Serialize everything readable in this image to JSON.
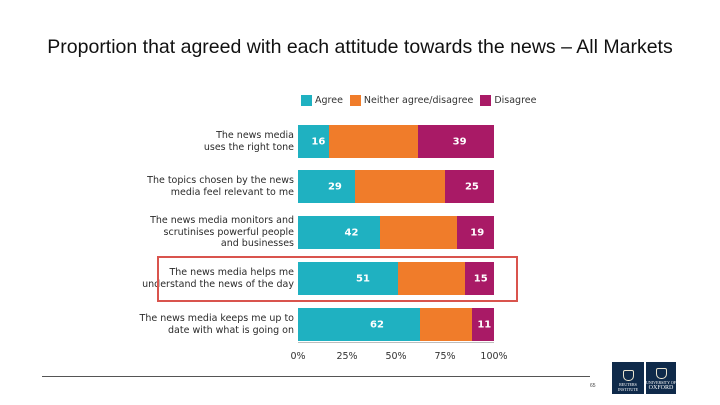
{
  "slide": {
    "title": "Proportion that agreed with each attitude towards the news – All Markets",
    "page_number": "65"
  },
  "logos": {
    "reuters": [
      "REUTERS",
      "INSTITUTE"
    ],
    "oxford": [
      "UNIVERSITY OF",
      "OXFORD"
    ]
  },
  "colors": {
    "agree": "#1fb1c1",
    "neither": "#f07c2a",
    "disagree": "#a91a66",
    "highlight": "#d9544d"
  },
  "chart_data": {
    "type": "bar",
    "orientation": "horizontal",
    "stacked": true,
    "legend_position": "top",
    "legend": [
      "Agree",
      "Neither agree/disagree",
      "Disagree"
    ],
    "categories": [
      "The news media\nuses the right tone",
      "The topics chosen by the news\nmedia feel relevant to me",
      "The news media monitors and\nscrutinises powerful people\nand businesses",
      "The news media helps me\nunderstand the news of the day",
      "The news media keeps me up to\ndate with what is going on"
    ],
    "series": [
      {
        "name": "Agree",
        "values": [
          16,
          29,
          42,
          51,
          62
        ],
        "labels": [
          "16",
          "29",
          "42",
          "51",
          "62"
        ]
      },
      {
        "name": "Neither agree/disagree",
        "values": [
          45,
          46,
          39,
          34,
          27
        ],
        "labels": [
          "",
          "",
          "",
          "",
          ""
        ]
      },
      {
        "name": "Disagree",
        "values": [
          39,
          25,
          19,
          15,
          11
        ],
        "labels": [
          "39",
          "25",
          "19",
          "15",
          "11"
        ]
      }
    ],
    "xlim": [
      0,
      100
    ],
    "xticks": [
      "0%",
      "25%",
      "50%",
      "75%",
      "100%"
    ],
    "highlighted_category_index": 3
  }
}
